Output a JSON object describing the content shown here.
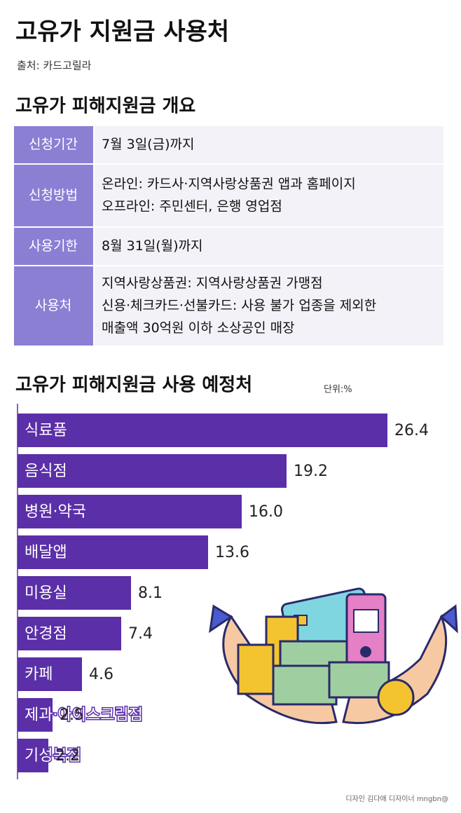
{
  "header": {
    "title": "고유가 지원금 사용처",
    "source": "출처: 카드고릴라"
  },
  "table": {
    "title": "고유가 피해지원금 개요",
    "rows": [
      [
        "신청기간",
        [
          "7월 3일(금)까지"
        ]
      ],
      [
        "신청방법",
        [
          "온라인: 카드사·지역사랑상품권 앱과 홈페이지",
          "오프라인: 주민센터, 은행 영업점"
        ]
      ],
      [
        "사용기한",
        [
          "8월 31일(월)까지"
        ]
      ],
      [
        "사용처",
        [
          "지역사랑상품권: 지역사랑상품권 가맹점",
          "신용·체크카드·선불카드: 사용 불가 업종을 제외한",
          "매출액 30억원 이하 소상공인 매장"
        ]
      ]
    ]
  },
  "chart_data": {
    "type": "bar",
    "title": "고유가 피해지원금 사용 예정처",
    "unit_label": "단위:%",
    "categories": [
      "식료품",
      "음식점",
      "병원·약국",
      "배달앱",
      "미용실",
      "안경점",
      "카페",
      "제과·아이스크림점",
      "기성복점"
    ],
    "values": [
      26.4,
      19.2,
      16.0,
      13.6,
      8.1,
      7.4,
      4.6,
      2.5,
      2.2
    ],
    "value_labels": [
      "26.4",
      "19.2",
      "16.0",
      "13.6",
      "8.1",
      "7.4",
      "4.6",
      "2.5",
      "2.2"
    ],
    "color": "#5b2fa8"
  },
  "footer": {
    "credit": "디자인 김다애 디자이너 mngbn@"
  }
}
